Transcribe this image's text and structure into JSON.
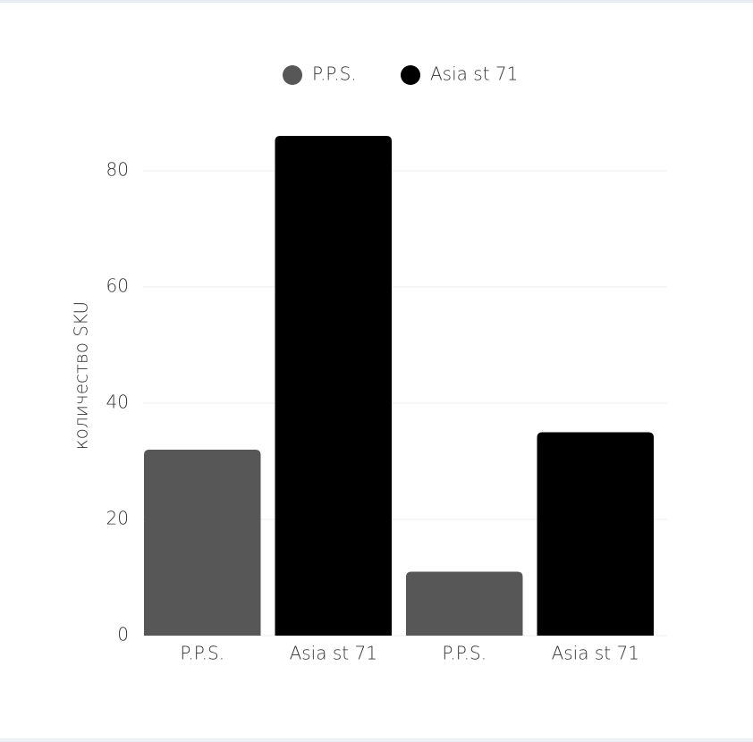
{
  "chart_data": {
    "type": "bar",
    "y_label": "количество SKU",
    "categories": [
      "P.P.S.",
      "Asia st 71",
      "P.P.S.",
      "Asia st 71"
    ],
    "series": [
      {
        "name": "P.P.S.",
        "color": "#575757",
        "values": [
          32,
          null,
          11,
          null
        ]
      },
      {
        "name": "Asia st 71",
        "color": "#000000",
        "values": [
          null,
          86,
          null,
          35
        ]
      }
    ],
    "ylim": [
      0,
      90
    ],
    "yticks": [
      0,
      20,
      40,
      60,
      80
    ],
    "grid": true
  }
}
